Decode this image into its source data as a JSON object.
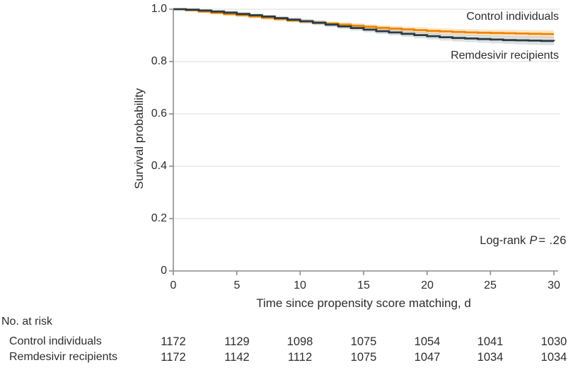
{
  "figure": {
    "background": "#ffffff",
    "text_color": "#2d2d2d"
  },
  "chart_data": {
    "type": "line",
    "variant": "kaplan-meier-step-curves-with-confidence-bands",
    "title": "",
    "xlabel": "Time since propensity score matching, d",
    "ylabel": "Survival probability",
    "xlim": [
      0,
      30
    ],
    "ylim": [
      0,
      1.0
    ],
    "x_ticks": [
      "0",
      "5",
      "10",
      "15",
      "20",
      "25",
      "30"
    ],
    "x_tick_values": [
      0,
      5,
      10,
      15,
      20,
      25,
      30
    ],
    "y_ticks": [
      "1.0",
      "0.8",
      "0.6",
      "0.4",
      "0.2",
      "0"
    ],
    "y_tick_values": [
      1.0,
      0.8,
      0.6,
      0.4,
      0.2,
      0
    ],
    "grid": true,
    "grid_color": "#e7e7e7",
    "axis_color": "#8c8c8c",
    "legend_position": "inline-annotations-top-right",
    "annotation": {
      "prefix": "Log-rank",
      "stat_symbol": "P",
      "value": "= .26"
    },
    "series": [
      {
        "name": "Control individuals",
        "color": "#EE8500",
        "band_color": "rgba(238,133,0,0.20)",
        "days": [
          0,
          1,
          2,
          3,
          4,
          5,
          6,
          7,
          8,
          9,
          10,
          11,
          12,
          13,
          14,
          15,
          16,
          17,
          18,
          19,
          20,
          21,
          22,
          23,
          24,
          25,
          26,
          27,
          28,
          29,
          30
        ],
        "survival": [
          1.0,
          0.996,
          0.991,
          0.986,
          0.981,
          0.977,
          0.972,
          0.967,
          0.962,
          0.957,
          0.953,
          0.949,
          0.945,
          0.941,
          0.937,
          0.933,
          0.929,
          0.926,
          0.923,
          0.92,
          0.917,
          0.915,
          0.913,
          0.911,
          0.91,
          0.909,
          0.908,
          0.907,
          0.906,
          0.905,
          0.905
        ],
        "ci_half_width_start": 0.004,
        "ci_half_width_end": 0.015
      },
      {
        "name": "Remdesivir recipients",
        "color": "#2A3B42",
        "band_color": "rgba(70,90,100,0.18)",
        "days": [
          0,
          1,
          2,
          3,
          4,
          5,
          6,
          7,
          8,
          9,
          10,
          11,
          12,
          13,
          14,
          15,
          16,
          17,
          18,
          19,
          20,
          21,
          22,
          23,
          24,
          25,
          26,
          27,
          28,
          29,
          30
        ],
        "survival": [
          1.0,
          0.998,
          0.995,
          0.991,
          0.987,
          0.982,
          0.977,
          0.972,
          0.966,
          0.96,
          0.954,
          0.948,
          0.941,
          0.934,
          0.928,
          0.922,
          0.916,
          0.911,
          0.906,
          0.901,
          0.897,
          0.893,
          0.89,
          0.888,
          0.886,
          0.884,
          0.882,
          0.881,
          0.88,
          0.879,
          0.878
        ],
        "ci_half_width_start": 0.004,
        "ci_half_width_end": 0.017
      }
    ]
  },
  "risk_table": {
    "title": "No. at risk",
    "rows": [
      {
        "label": "Control individuals",
        "values": [
          "1172",
          "1129",
          "1098",
          "1075",
          "1054",
          "1041",
          "1030"
        ]
      },
      {
        "label": "Remdesivir recipients",
        "values": [
          "1172",
          "1142",
          "1112",
          "1075",
          "1047",
          "1034",
          "1034"
        ]
      }
    ]
  }
}
